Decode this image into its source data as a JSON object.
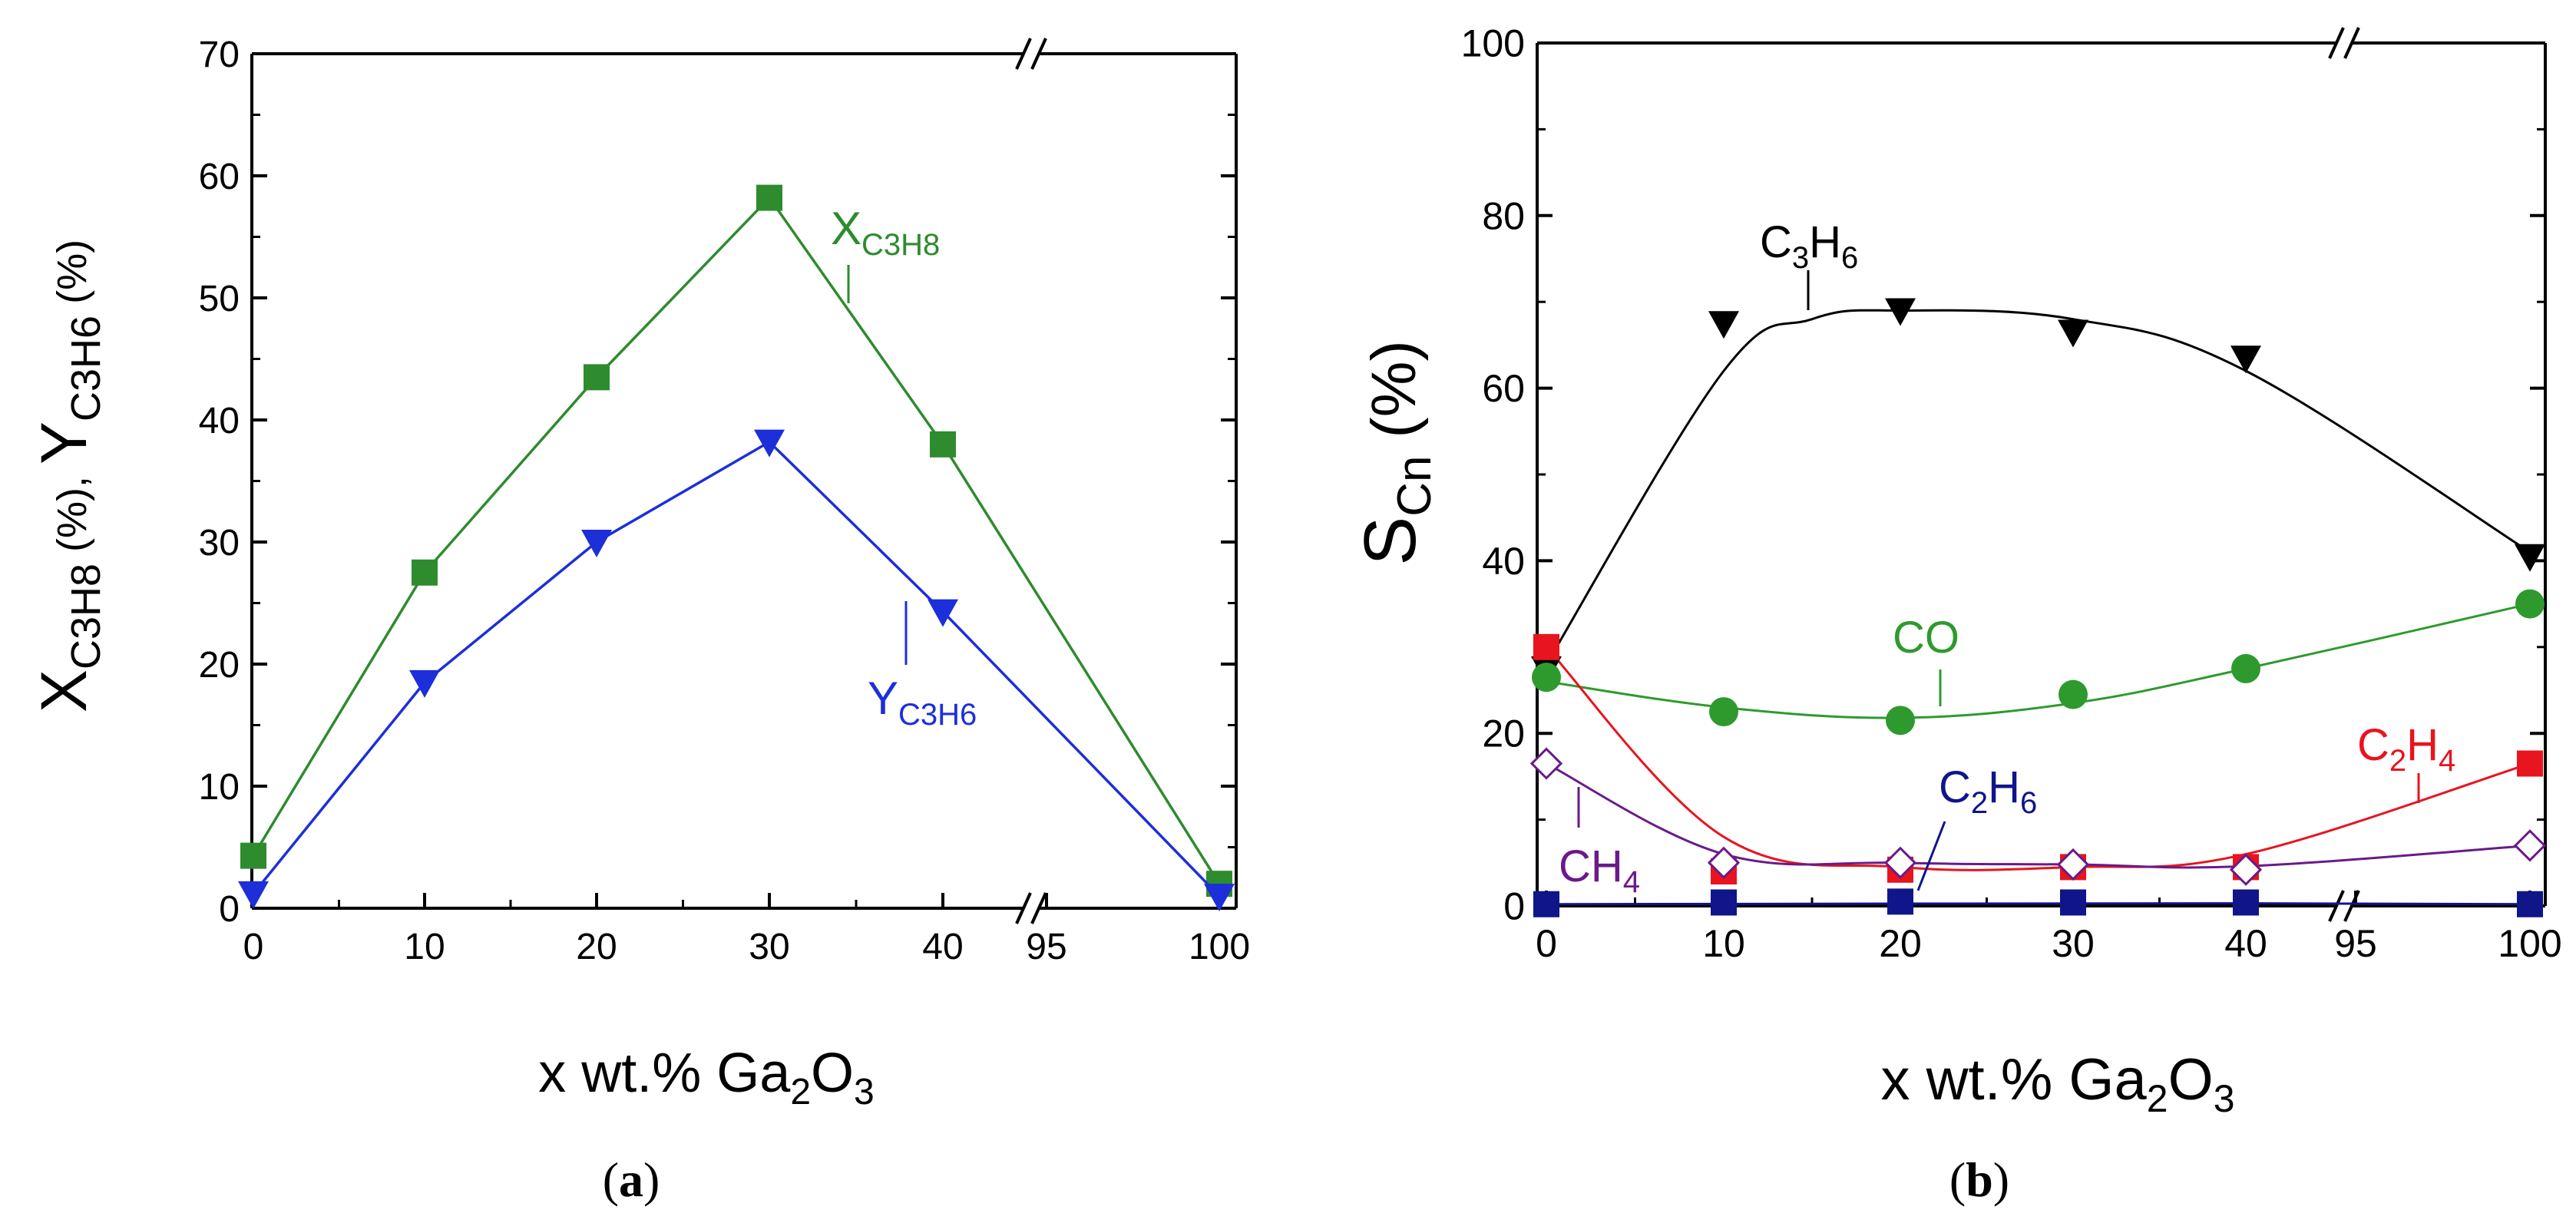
{
  "chart_data": [
    {
      "panel": "a",
      "type": "line",
      "caption_letter": "a",
      "xlabel_prefix": "x wt.% Ga",
      "xlabel_sub1": "2",
      "xlabel_mid": "O",
      "xlabel_sub2": "3",
      "ylabel_x": "X",
      "ylabel_x_sub": "C3H8",
      "ylabel_x_unit": " (%),  ",
      "ylabel_y": "Y",
      "ylabel_y_sub": "C3H6",
      "ylabel_y_unit": " (%)",
      "ylim": [
        0,
        70
      ],
      "yticks": [
        0,
        10,
        20,
        30,
        40,
        50,
        60,
        70
      ],
      "categories": [
        "0",
        "10",
        "20",
        "30",
        "40",
        "95",
        "100"
      ],
      "axis_break": "between 40 and 95",
      "series": [
        {
          "name": "X",
          "name_sub": "C3H8",
          "marker": "square",
          "color": "#2e8b2e",
          "x": [
            "0",
            "10",
            "20",
            "30",
            "40",
            "100"
          ],
          "values": [
            4.3,
            27.5,
            43.5,
            58.2,
            38.0,
            2.0
          ]
        },
        {
          "name": "Y",
          "name_sub": "C3H6",
          "marker": "triangle-down",
          "color": "#1c2fd9",
          "x": [
            "0",
            "10",
            "20",
            "30",
            "40",
            "100"
          ],
          "values": [
            1.2,
            18.5,
            30.0,
            38.2,
            24.3,
            1.0
          ]
        }
      ]
    },
    {
      "panel": "b",
      "type": "scatter",
      "caption_letter": "b",
      "xlabel_prefix": "x wt.% Ga",
      "xlabel_sub1": "2",
      "xlabel_mid": "O",
      "xlabel_sub2": "3",
      "ylabel": "S",
      "ylabel_sub": "Cn",
      "ylabel_unit": "  (%)",
      "ylim": [
        0,
        100
      ],
      "yticks": [
        0,
        20,
        40,
        60,
        80,
        100
      ],
      "categories": [
        "0",
        "10",
        "20",
        "30",
        "40",
        "95",
        "100"
      ],
      "axis_break": "between 40 and 95",
      "series": [
        {
          "name": "C",
          "sub1": "3",
          "mid": "H",
          "sub2": "6",
          "marker": "triangle-down",
          "color": "#000000",
          "x": [
            "0",
            "10",
            "20",
            "30",
            "40",
            "100"
          ],
          "values": [
            27.5,
            67.5,
            69.0,
            66.5,
            63.5,
            40.5
          ]
        },
        {
          "name": "CO",
          "sub1": "",
          "mid": "",
          "sub2": "",
          "marker": "circle",
          "color": "#2e9a2e",
          "x": [
            "0",
            "10",
            "20",
            "30",
            "40",
            "100"
          ],
          "values": [
            26.5,
            22.5,
            21.5,
            24.5,
            27.5,
            35.0
          ]
        },
        {
          "name": "C",
          "sub1": "2",
          "mid": "H",
          "sub2": "4",
          "marker": "square",
          "color": "#e8141e",
          "x": [
            "0",
            "10",
            "20",
            "30",
            "40",
            "100"
          ],
          "values": [
            30.0,
            4.0,
            4.2,
            4.5,
            4.5,
            16.5
          ]
        },
        {
          "name": "CH",
          "sub1": "4",
          "mid": "",
          "sub2": "",
          "marker": "diamond-open",
          "color": "#6a1a8a",
          "x": [
            "0",
            "10",
            "20",
            "30",
            "40",
            "100"
          ],
          "values": [
            16.5,
            5.0,
            5.0,
            4.8,
            4.2,
            7.0
          ]
        },
        {
          "name": "C",
          "sub1": "2",
          "mid": "H",
          "sub2": "6",
          "marker": "square",
          "color": "#10158a",
          "x": [
            "0",
            "10",
            "20",
            "30",
            "40",
            "100"
          ],
          "values": [
            0.2,
            0.4,
            0.5,
            0.4,
            0.4,
            0.2
          ]
        }
      ]
    }
  ]
}
